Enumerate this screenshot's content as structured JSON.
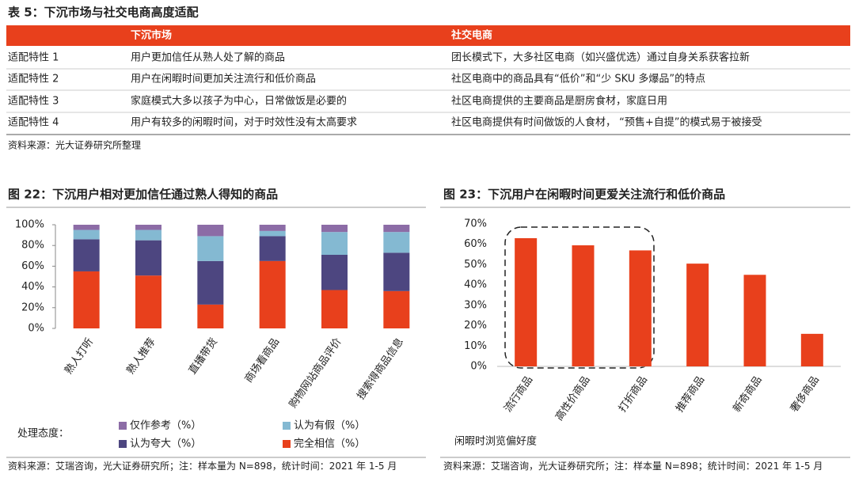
{
  "table": {
    "title": "表 5：下沉市场与社交电商高度适配",
    "header": [
      "下沉市场",
      "社交电商"
    ],
    "rows": [
      [
        "适配特性 1",
        "用户更加信任从熟人处了解的商品",
        "团长模式下，大多社区电商（如兴盛优选）通过自身关系获客拉新"
      ],
      [
        "适配特性 2",
        "用户在闲暇时间更加关注流行和低价商品",
        "社区电商中的商品具有“低价”和“少 SKU 多爆品”的特点"
      ],
      [
        "适配特性 3",
        "家庭模式大多以孩子为中心，日常做饭是必要的",
        "社区电商提供的主要商品是厨房食材，家庭日用"
      ],
      [
        "适配特性 4",
        "用户有较多的闲暇时间，对于时效性没有太高要求",
        "社区电商提供有时间做饭的人食材，  “预售+自提”的模式易于被接受"
      ]
    ],
    "source": "资料来源：光大证券研究所整理"
  },
  "chart_data": [
    {
      "type": "stacked_bar",
      "title": "图 22：下沉用户相对更加信任通过熟人得知的商品",
      "categories": [
        "熟人打听",
        "熟人推荐",
        "直播带货",
        "商场看商品",
        "购物网站商品评价",
        "搜索得商品信息"
      ],
      "series": [
        {
          "name": "完全相信（%）",
          "color": "#e8401c",
          "values": [
            55,
            51,
            23,
            65,
            37,
            36
          ]
        },
        {
          "name": "认为夸大（%）",
          "color": "#4d4680",
          "values": [
            31,
            34,
            42,
            24,
            34,
            37
          ]
        },
        {
          "name": "认为有假（%）",
          "color": "#84b9d2",
          "values": [
            9,
            10,
            24,
            5,
            22,
            20
          ]
        },
        {
          "name": "仅作参考（%）",
          "color": "#8c6ca6",
          "values": [
            5,
            5,
            11,
            6,
            7,
            7
          ]
        }
      ],
      "ylim": [
        0,
        100
      ],
      "yticks": [
        {
          "value": 0,
          "label": "0%"
        },
        {
          "value": 20,
          "label": "20%"
        },
        {
          "value": 40,
          "label": "40%"
        },
        {
          "value": 60,
          "label": "60%"
        },
        {
          "value": 80,
          "label": "80%"
        },
        {
          "value": 100,
          "label": "100%"
        }
      ],
      "legend_title": "处理态度：",
      "source": "资料来源：艾瑞咨询，光大证券研究所；注：样本量为 N=898，统计时间：2021 年 1-5 月"
    },
    {
      "type": "bar",
      "title": "图 23：下沉用户在闲暇时间更爱关注流行和低价商品",
      "categories": [
        "流行商品",
        "高性价商品",
        "打折商品",
        "推荐商品",
        "新奇商品",
        "奢侈商品"
      ],
      "values": [
        63,
        59.5,
        57,
        50.5,
        45,
        16
      ],
      "color": "#e8401c",
      "xlabel": "闲暇时浏览偏好度",
      "ylim": [
        0,
        70
      ],
      "yticks": [
        {
          "value": 0,
          "label": "0%"
        },
        {
          "value": 10,
          "label": "10%"
        },
        {
          "value": 20,
          "label": "20%"
        },
        {
          "value": 30,
          "label": "30%"
        },
        {
          "value": 40,
          "label": "40%"
        },
        {
          "value": 50,
          "label": "50%"
        },
        {
          "value": 60,
          "label": "60%"
        },
        {
          "value": 70,
          "label": "70%"
        }
      ],
      "source": "资料来源：艾瑞咨询，光大证券研究所；注：样本量 N=898；统计时间：2021 年 1-5 月"
    }
  ]
}
